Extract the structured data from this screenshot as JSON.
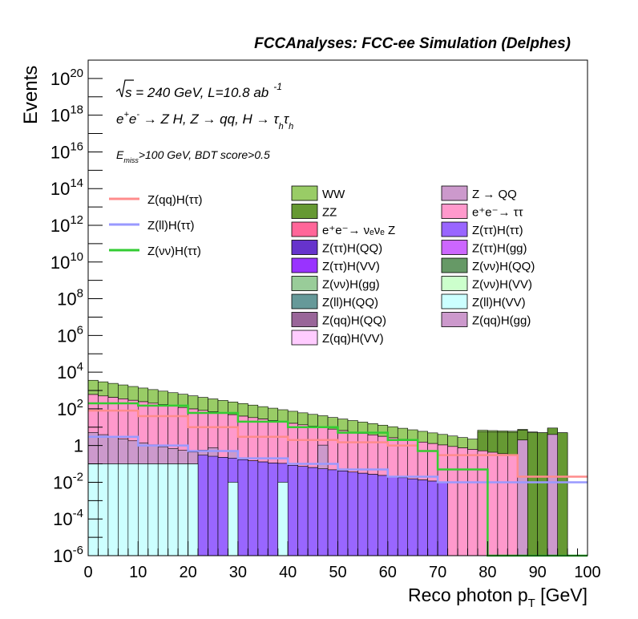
{
  "chart_data": {
    "type": "bar",
    "title": "FCCAnalyses: FCC-ee Simulation (Delphes)",
    "xlabel": "Reco photon p",
    "xlabel_sub": "T",
    "xlabel_unit": " [GeV]",
    "ylabel": "Events",
    "xlim": [
      0,
      100
    ],
    "ylim": [
      1e-06,
      1e+21
    ],
    "yscale": "log",
    "grid": false,
    "legend_position": "upper-middle",
    "annotations": {
      "sqrt_s": "s",
      "energy_text": " = 240 GeV, L=10.8 ab",
      "lumi_exp": "-1",
      "process_prefix": "e",
      "process_sup1": "+",
      "process_e2": "e",
      "process_sup2": "-",
      "process_mid": " → Z H, Z  → qq, H  → τ",
      "process_h1": "h",
      "process_tau2": "τ",
      "process_h2": "h",
      "cut_e": "E",
      "cut_sub": "miss",
      "cut_text": ">100 GeV, BDT score>0.5"
    },
    "x_ticks": [
      "0",
      "10",
      "20",
      "30",
      "40",
      "50",
      "60",
      "70",
      "80",
      "90",
      "100"
    ],
    "y_ticks": [
      {
        "base": "10",
        "exp": "20",
        "exp_value": 20
      },
      {
        "base": "10",
        "exp": "18",
        "exp_value": 18
      },
      {
        "base": "10",
        "exp": "16",
        "exp_value": 16
      },
      {
        "base": "10",
        "exp": "14",
        "exp_value": 14
      },
      {
        "base": "10",
        "exp": "12",
        "exp_value": 12
      },
      {
        "base": "10",
        "exp": "10",
        "exp_value": 10
      },
      {
        "base": "10",
        "exp": "8",
        "exp_value": 8
      },
      {
        "base": "10",
        "exp": "6",
        "exp_value": 6
      },
      {
        "base": "10",
        "exp": "4",
        "exp_value": 4
      },
      {
        "base": "10",
        "exp": "2",
        "exp_value": 2
      },
      {
        "base": "1",
        "exp": "",
        "exp_value": 0
      },
      {
        "base": "10",
        "exp": "-2",
        "exp_value": -2
      },
      {
        "base": "10",
        "exp": "-4",
        "exp_value": -4
      },
      {
        "base": "10",
        "exp": "-6",
        "exp_value": -6
      }
    ],
    "bin_width": 2,
    "stack_bottom_first": [
      {
        "name": "Z(ll)H(VV)",
        "color": "#ccffff",
        "range": [
          0,
          22
        ],
        "start": 0.1,
        "end": 0.1,
        "extra": [
          [
            28,
            0.01
          ],
          [
            38,
            0.01
          ]
        ]
      },
      {
        "name": "Z(ττ)H(ττ)",
        "color": "#9966ff",
        "range": [
          22,
          72
        ],
        "start": 0.3,
        "end": 0.01
      },
      {
        "name": "Z(qq)H(gg)",
        "color": "#cc99cc",
        "range": [
          0,
          26
        ],
        "start": 5,
        "end": 0.2,
        "extra": [
          [
            24,
            0.3
          ],
          [
            28,
            0.3
          ],
          [
            46,
            1
          ],
          [
            86,
            2
          ],
          [
            92,
            4
          ]
        ]
      },
      {
        "name": "e⁺e⁻→ ττ",
        "color": "#ff99cc",
        "range": [
          0,
          86
        ],
        "start": 600,
        "end": 0.3
      },
      {
        "name": "ZZ",
        "color": "#669933",
        "range": [
          78,
          96
        ],
        "start": 5,
        "end": 5,
        "extra": [
          [
            84,
            0.01
          ],
          [
            90,
            0.01
          ],
          [
            92,
            0.01
          ]
        ]
      },
      {
        "name": "WW",
        "color": "#99cc66",
        "range": [
          0,
          90
        ],
        "start": 3000,
        "end": 0.5
      }
    ],
    "small_components": [
      {
        "name": "e⁺e⁻→ νₑνₑ Z",
        "color": "#ff6699"
      },
      {
        "name": "Z(ττ)H(QQ)",
        "color": "#6633cc"
      },
      {
        "name": "Z(ττ)H(VV)",
        "color": "#9933ff"
      },
      {
        "name": "Z(νν)H(gg)",
        "color": "#99cc99"
      },
      {
        "name": "Z(ll)H(QQ)",
        "color": "#669999"
      },
      {
        "name": "Z(qq)H(QQ)",
        "color": "#996699"
      },
      {
        "name": "Z(qq)H(VV)",
        "color": "#ffccff"
      },
      {
        "name": "Z → QQ",
        "color": "#cc99cc"
      },
      {
        "name": "Z(ττ)H(gg)",
        "color": "#cc66ff"
      },
      {
        "name": "Z(νν)H(QQ)",
        "color": "#669966"
      },
      {
        "name": "Z(νν)H(VV)",
        "color": "#ccffcc"
      }
    ],
    "signal_lines": [
      {
        "name": "Z(qq)H(ττ)",
        "color": "#ff8c8c",
        "points": [
          [
            0,
            80
          ],
          [
            10,
            40
          ],
          [
            20,
            10
          ],
          [
            30,
            3
          ],
          [
            40,
            2
          ],
          [
            50,
            1.5
          ],
          [
            60,
            1
          ],
          [
            66,
            0.5
          ],
          [
            70,
            0.3
          ],
          [
            80,
            0.3
          ],
          [
            86,
            0.02
          ]
        ]
      },
      {
        "name": "Z(ll)H(ττ)",
        "color": "#9999ff",
        "points": [
          [
            0,
            3
          ],
          [
            10,
            1
          ],
          [
            20,
            0.5
          ],
          [
            30,
            0.2
          ],
          [
            40,
            0.1
          ],
          [
            50,
            0.05
          ],
          [
            60,
            0.02
          ],
          [
            70,
            0.01
          ],
          [
            76,
            0.01
          ]
        ]
      },
      {
        "name": "Z(νν)H(ττ)",
        "color": "#33cc33",
        "points": [
          [
            0,
            200
          ],
          [
            10,
            150
          ],
          [
            20,
            60
          ],
          [
            30,
            20
          ],
          [
            40,
            10
          ],
          [
            50,
            5
          ],
          [
            60,
            2
          ],
          [
            66,
            0.5
          ],
          [
            70,
            0.05
          ],
          [
            76,
            0.05
          ],
          [
            80,
            1e-06
          ]
        ]
      }
    ],
    "legend_col1": [
      "WW",
      "ZZ",
      "e⁺e⁻→ νₑνₑ Z",
      "Z(ττ)H(QQ)",
      "Z(ττ)H(VV)",
      "Z(νν)H(gg)",
      "Z(ll)H(QQ)",
      "Z(qq)H(QQ)",
      "Z(qq)H(VV)"
    ],
    "legend_col1_colors": [
      "#99cc66",
      "#669933",
      "#ff6699",
      "#6633cc",
      "#9933ff",
      "#99cc99",
      "#669999",
      "#996699",
      "#ffccff"
    ],
    "legend_col2": [
      "Z → QQ",
      "e⁺e⁻→ ττ",
      "Z(ττ)H(ττ)",
      "Z(ττ)H(gg)",
      "Z(νν)H(QQ)",
      "Z(νν)H(VV)",
      "Z(ll)H(VV)",
      "Z(qq)H(gg)"
    ],
    "legend_col2_colors": [
      "#cc99cc",
      "#ff99cc",
      "#9966ff",
      "#cc66ff",
      "#669966",
      "#ccffcc",
      "#ccffff",
      "#cc99cc"
    ]
  }
}
